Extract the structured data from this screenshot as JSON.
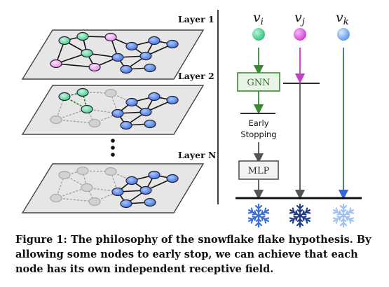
{
  "layers": {
    "layer1": "Layer 1",
    "layer2": "Layer 2",
    "layerN": "Layer N"
  },
  "nodes": {
    "vi": {
      "label": "v",
      "sub": "i",
      "color": "#3fcf8e"
    },
    "vj": {
      "label": "v",
      "sub": "j",
      "color": "#d44ed8"
    },
    "vk": {
      "label": "v",
      "sub": "k",
      "color": "#6fa8f0"
    }
  },
  "pipeline": {
    "gnn": "GNN",
    "early_line1": "Early",
    "early_line2": "Stopping",
    "mlp": "MLP"
  },
  "colors": {
    "green_path": "#3c8a35",
    "magenta_path": "#c63dc8",
    "blue_path": "#3567d6",
    "gray_path": "#555555",
    "plane_fill": "#e6e6e6"
  },
  "icons": [
    "snowflake-icon-blue",
    "snowflake-icon-navy",
    "snowflake-icon-light"
  ],
  "caption": "Figure 1: The philosophy of the snowflake flake hypothesis. By allowing some nodes to early stop, we can achieve that each node has its own independent receptive field."
}
